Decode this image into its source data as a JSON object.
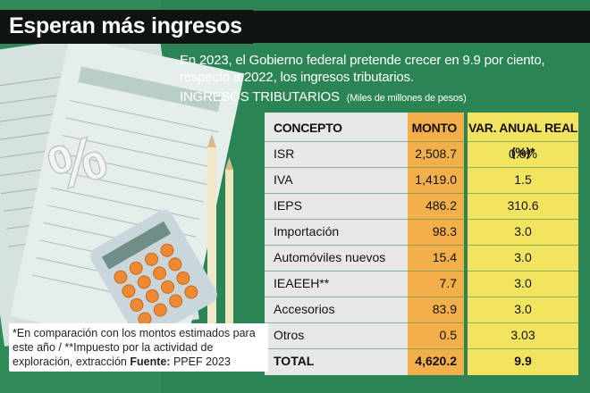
{
  "title": "Esperan más ingresos",
  "subtitle": "En 2023, el Gobierno federal pretende crecer en 9.9 por ciento, respecto a 2022,  los ingresos tributarios.",
  "section_title": "INGRESOS TRIBUTARIOS",
  "section_units": "(Miles de millones de pesos)",
  "notes": {
    "text": "*En comparación con los montos estimados para este año / **Impuesto por la actividad de exploración, extracción",
    "source_label": "Fuente:",
    "source": "PPEF 2023"
  },
  "colors": {
    "background": "#2f8a58",
    "title_bg": "#0f1410",
    "concept_col": "#e8e8e8",
    "monto_col": "#f3b04a",
    "var_col": "#f2e45e"
  },
  "chart_data": {
    "type": "table",
    "columns": [
      "CONCEPTO",
      "MONTO",
      "VAR. ANUAL REAL (%)*"
    ],
    "rows": [
      {
        "concepto": "ISR",
        "monto": "2,508.7",
        "var": "0.8%"
      },
      {
        "concepto": "IVA",
        "monto": "1,419.0",
        "var": "1.5"
      },
      {
        "concepto": "IEPS",
        "monto": "486.2",
        "var": "310.6"
      },
      {
        "concepto": "Importación",
        "monto": "98.3",
        "var": "3.0"
      },
      {
        "concepto": "Automóviles nuevos",
        "monto": "15.4",
        "var": "3.0"
      },
      {
        "concepto": "IEAEEH**",
        "monto": "7.7",
        "var": "3.0"
      },
      {
        "concepto": "Accesorios",
        "monto": "83.9",
        "var": "3.0"
      },
      {
        "concepto": "Otros",
        "monto": "0.5",
        "var": "3.03"
      }
    ],
    "total": {
      "concepto": "TOTAL",
      "monto": "4,620.2",
      "var": "9.9"
    }
  }
}
